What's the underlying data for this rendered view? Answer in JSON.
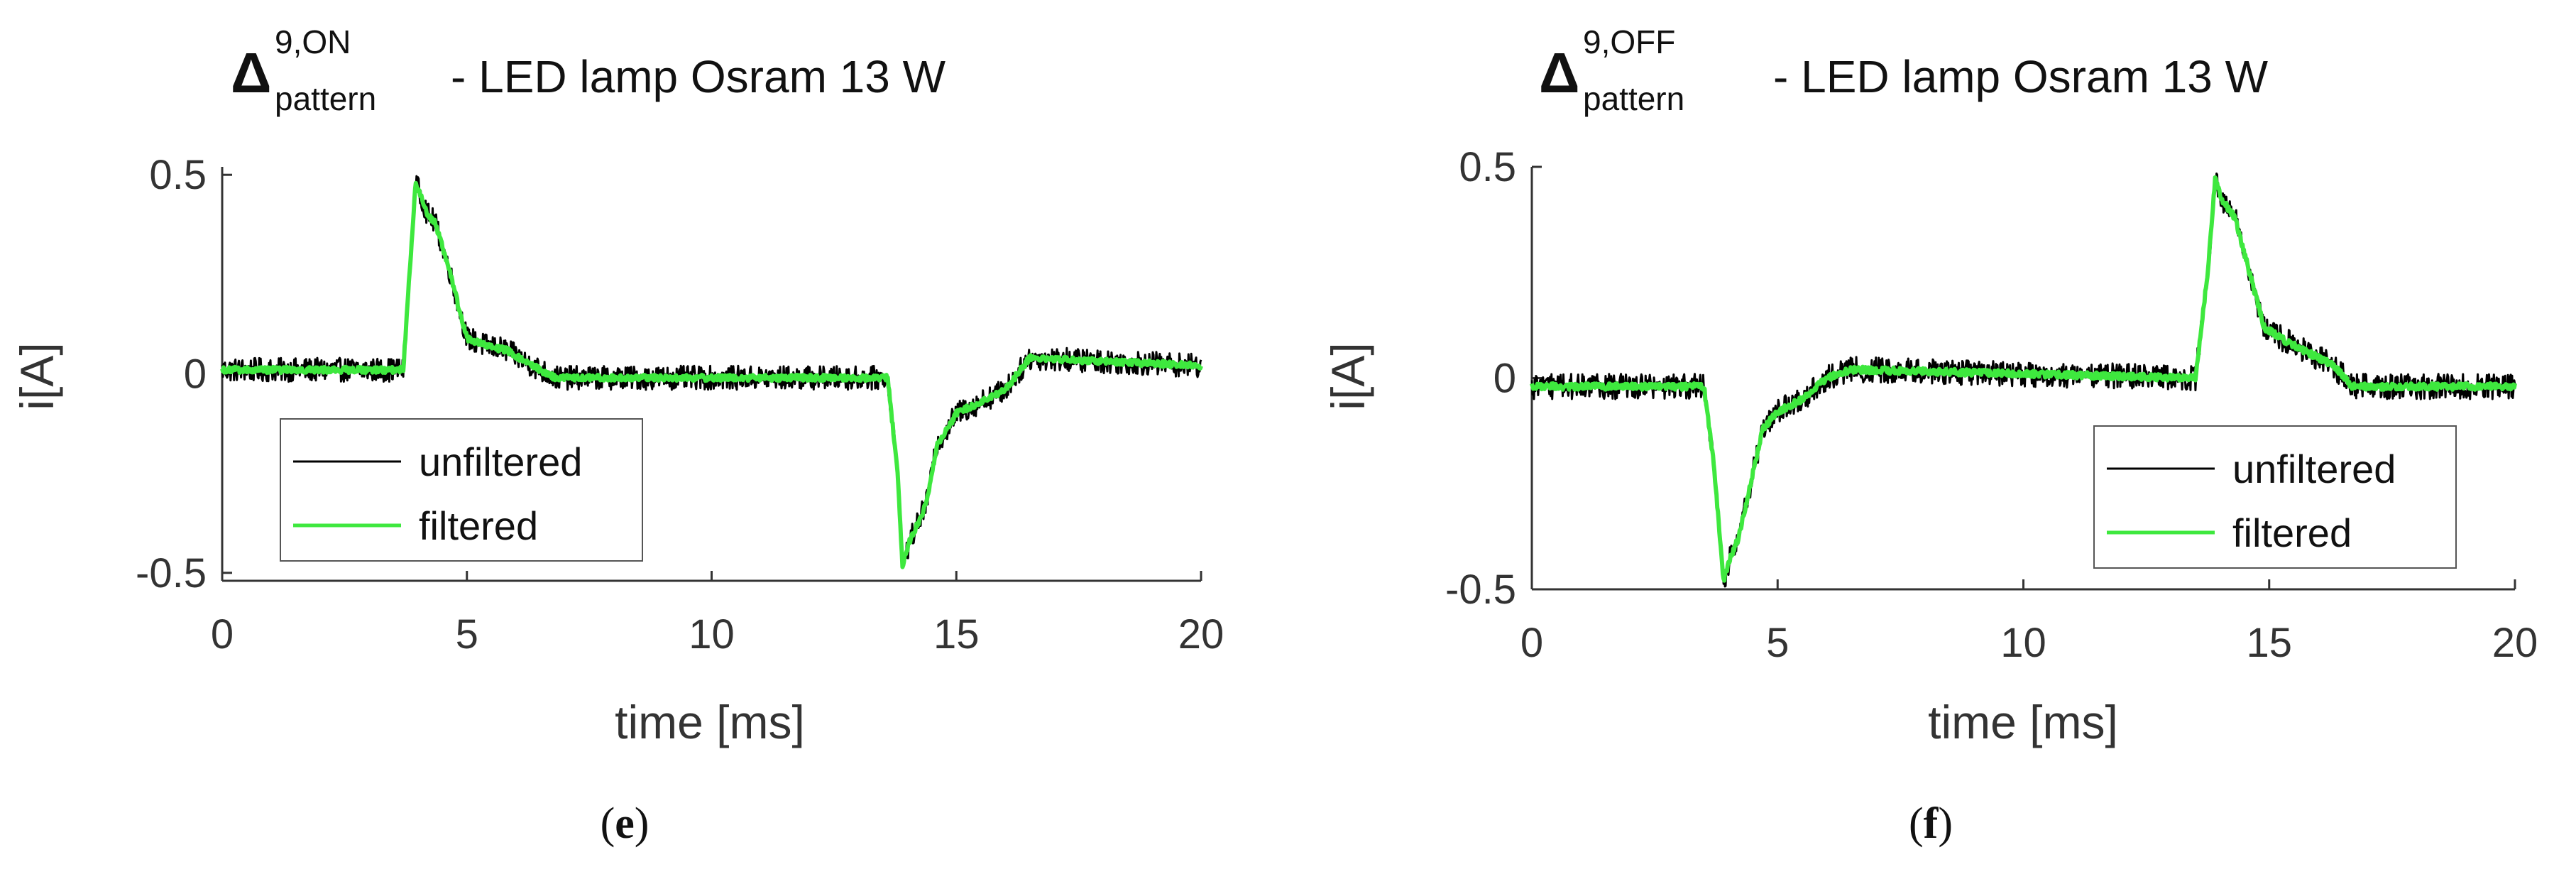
{
  "chart_data": [
    {
      "type": "line",
      "panel_label": "e",
      "title": {
        "symbol": "Δ",
        "superscript": "9,ON",
        "subscript": "pattern",
        "text": "- LED lamp Osram 13 W"
      },
      "xlabel": "time [ms]",
      "ylabel": "i[A]",
      "xlim": [
        0,
        20
      ],
      "ylim": [
        -0.52,
        0.52
      ],
      "xticks": [
        0,
        5,
        10,
        15,
        20
      ],
      "xtick_labels": [
        "0",
        "5",
        "10",
        "15",
        "20"
      ],
      "yticks": [
        -0.5,
        0,
        0.5
      ],
      "ytick_labels": [
        "-0.5",
        "0",
        "0.5"
      ],
      "legend": {
        "position": "lower-left",
        "entries": [
          "unfiltered",
          "filtered"
        ]
      },
      "noise_amplitude": 0.03,
      "series": [
        {
          "name": "unfiltered",
          "color": "#000000",
          "x": [
            0,
            3.7,
            3.8,
            3.95,
            4.05,
            4.2,
            4.35,
            4.6,
            4.85,
            5.0,
            5.4,
            5.8,
            6.2,
            6.8,
            13.6,
            13.8,
            13.9,
            14.05,
            14.2,
            14.4,
            14.6,
            15.0,
            15.5,
            16.0,
            16.5,
            20
          ],
          "y": [
            0.01,
            0.01,
            0.2,
            0.48,
            0.45,
            0.4,
            0.38,
            0.28,
            0.16,
            0.09,
            0.07,
            0.06,
            0.03,
            -0.01,
            -0.01,
            -0.25,
            -0.48,
            -0.42,
            -0.38,
            -0.32,
            -0.18,
            -0.1,
            -0.07,
            -0.04,
            0.04,
            0.02
          ]
        },
        {
          "name": "filtered",
          "color": "#3ee83e",
          "x": [
            0,
            3.7,
            3.8,
            3.95,
            4.05,
            4.2,
            4.35,
            4.6,
            4.85,
            5.0,
            5.4,
            5.8,
            6.2,
            6.8,
            13.6,
            13.8,
            13.9,
            14.05,
            14.2,
            14.4,
            14.6,
            15.0,
            15.5,
            16.0,
            16.5,
            20
          ],
          "y": [
            0.01,
            0.01,
            0.2,
            0.48,
            0.45,
            0.4,
            0.38,
            0.28,
            0.16,
            0.09,
            0.07,
            0.06,
            0.03,
            -0.01,
            -0.01,
            -0.25,
            -0.48,
            -0.42,
            -0.38,
            -0.32,
            -0.18,
            -0.1,
            -0.07,
            -0.04,
            0.04,
            0.02
          ]
        }
      ]
    },
    {
      "type": "line",
      "panel_label": "f",
      "title": {
        "symbol": "Δ",
        "superscript": "9,OFF",
        "subscript": "pattern",
        "text": "- LED lamp Osram 13 W"
      },
      "xlabel": "time [ms]",
      "ylabel": "i[A]",
      "xlim": [
        0,
        20
      ],
      "ylim": [
        -0.5,
        0.5
      ],
      "xticks": [
        0,
        5,
        10,
        15,
        20
      ],
      "xtick_labels": [
        "0",
        "5",
        "10",
        "15",
        "20"
      ],
      "yticks": [
        -0.5,
        0,
        0.5
      ],
      "ytick_labels": [
        "-0.5",
        "0",
        "0.5"
      ],
      "legend": {
        "position": "lower-right",
        "entries": [
          "unfiltered",
          "filtered"
        ]
      },
      "noise_amplitude": 0.03,
      "series": [
        {
          "name": "unfiltered",
          "color": "#000000",
          "x": [
            0,
            3.5,
            3.7,
            3.9,
            4.05,
            4.2,
            4.45,
            4.7,
            5.0,
            5.5,
            6.0,
            6.5,
            13.5,
            13.75,
            13.9,
            14.05,
            14.3,
            14.6,
            14.9,
            15.3,
            15.8,
            16.3,
            16.7,
            20
          ],
          "y": [
            -0.02,
            -0.02,
            -0.2,
            -0.48,
            -0.42,
            -0.38,
            -0.25,
            -0.12,
            -0.08,
            -0.05,
            0.0,
            0.02,
            0.0,
            0.25,
            0.47,
            0.42,
            0.38,
            0.25,
            0.12,
            0.09,
            0.06,
            0.03,
            -0.02,
            -0.02
          ]
        },
        {
          "name": "filtered",
          "color": "#3ee83e",
          "x": [
            0,
            3.5,
            3.7,
            3.9,
            4.05,
            4.2,
            4.45,
            4.7,
            5.0,
            5.5,
            6.0,
            6.5,
            13.5,
            13.75,
            13.9,
            14.05,
            14.3,
            14.6,
            14.9,
            15.3,
            15.8,
            16.3,
            16.7,
            20
          ],
          "y": [
            -0.02,
            -0.02,
            -0.2,
            -0.48,
            -0.42,
            -0.38,
            -0.25,
            -0.12,
            -0.08,
            -0.05,
            0.0,
            0.02,
            0.0,
            0.25,
            0.47,
            0.42,
            0.38,
            0.25,
            0.12,
            0.09,
            0.06,
            0.03,
            -0.02,
            -0.02
          ]
        }
      ]
    }
  ]
}
